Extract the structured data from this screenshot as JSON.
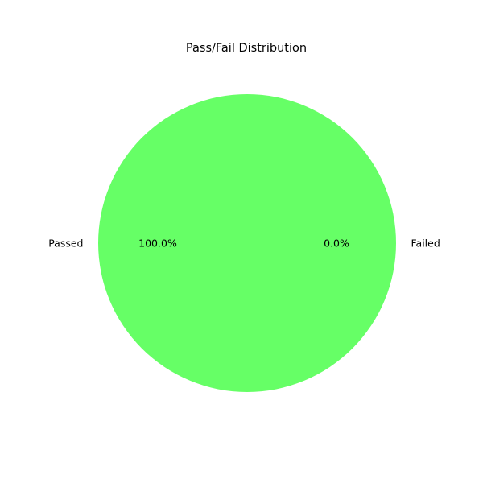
{
  "chart_data": {
    "type": "pie",
    "title": "Pass/Fail Distribution",
    "slices": [
      {
        "label": "Passed",
        "value": 100.0,
        "pct_label": "100.0%",
        "color": "#66ff66"
      },
      {
        "label": "Failed",
        "value": 0.0,
        "pct_label": "0.0%",
        "color": "#ff6666"
      }
    ],
    "start_angle_deg": 0,
    "direction": "counterclockwise",
    "legend": "none"
  }
}
